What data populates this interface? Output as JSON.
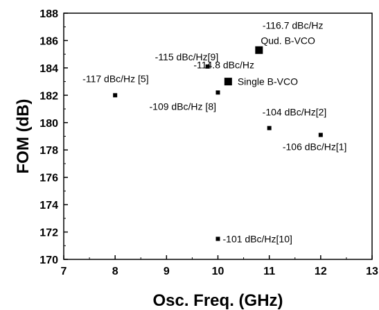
{
  "chart_data": {
    "type": "scatter",
    "title": "",
    "xlabel": "Osc. Freq. (GHz)",
    "ylabel": "FOM (dB)",
    "xlim": [
      7,
      13
    ],
    "ylim": [
      170,
      188
    ],
    "xticks": [
      "7",
      "8",
      "9",
      "10",
      "11",
      "12",
      "13"
    ],
    "yticks": [
      "170",
      "172",
      "174",
      "176",
      "178",
      "180",
      "182",
      "184",
      "186",
      "188"
    ],
    "grid": false,
    "color": "#000000",
    "points": [
      {
        "x": 8.0,
        "y": 182.0,
        "label": "-117 dBc/Hz [5]",
        "size": "small"
      },
      {
        "x": 9.8,
        "y": 184.1,
        "label": "-115 dBc/Hz[9]",
        "size": "small"
      },
      {
        "x": 10.0,
        "y": 182.2,
        "label": "-109 dBc/Hz [8]",
        "size": "small"
      },
      {
        "x": 10.2,
        "y": 183.0,
        "label": "-114.8 dBc/Hz",
        "label2": "Single B-VCO",
        "size": "large"
      },
      {
        "x": 10.8,
        "y": 185.3,
        "label": "-116.7 dBc/Hz",
        "label2": "Qud. B-VCO",
        "size": "large"
      },
      {
        "x": 11.0,
        "y": 179.6,
        "label": "-104 dBc/Hz[2]",
        "size": "small"
      },
      {
        "x": 12.0,
        "y": 179.1,
        "label": "-106 dBc/Hz[1]",
        "size": "small"
      },
      {
        "x": 10.0,
        "y": 171.5,
        "label": "-101 dBc/Hz[10]",
        "size": "small"
      }
    ]
  }
}
